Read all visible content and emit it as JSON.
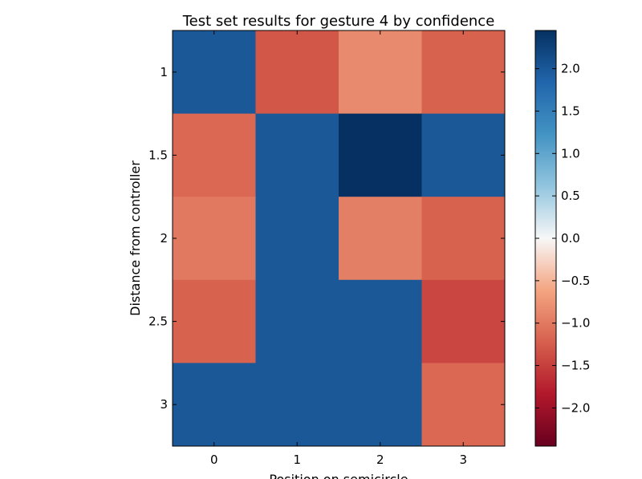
{
  "chart_data": {
    "type": "heatmap",
    "title": "Test set results for gesture 4 by confidence",
    "xlabel": "Position on semicircle",
    "ylabel": "Distance from controller",
    "x_tick_labels": [
      "0",
      "1",
      "2",
      "3"
    ],
    "y_tick_labels": [
      "1",
      "1.5",
      "2",
      "2.5",
      "3"
    ],
    "values": [
      [
        2.0,
        -1.3,
        -0.85,
        -1.2
      ],
      [
        -1.15,
        2.0,
        2.45,
        2.0
      ],
      [
        -1.0,
        2.0,
        -0.95,
        -1.2
      ],
      [
        -1.2,
        2.0,
        2.0,
        -1.45
      ],
      [
        2.0,
        2.0,
        2.0,
        -1.15
      ]
    ],
    "colormap": "RdBu",
    "color_range": [
      -2.45,
      2.45
    ],
    "colorbar_ticks": [
      "2.0",
      "1.5",
      "1.0",
      "0.5",
      "0.0",
      "−0.5",
      "−1.0",
      "−1.5",
      "−2.0"
    ],
    "colorbar_tick_values": [
      2.0,
      1.5,
      1.0,
      0.5,
      0.0,
      -0.5,
      -1.0,
      -1.5,
      -2.0
    ],
    "grid": false
  }
}
